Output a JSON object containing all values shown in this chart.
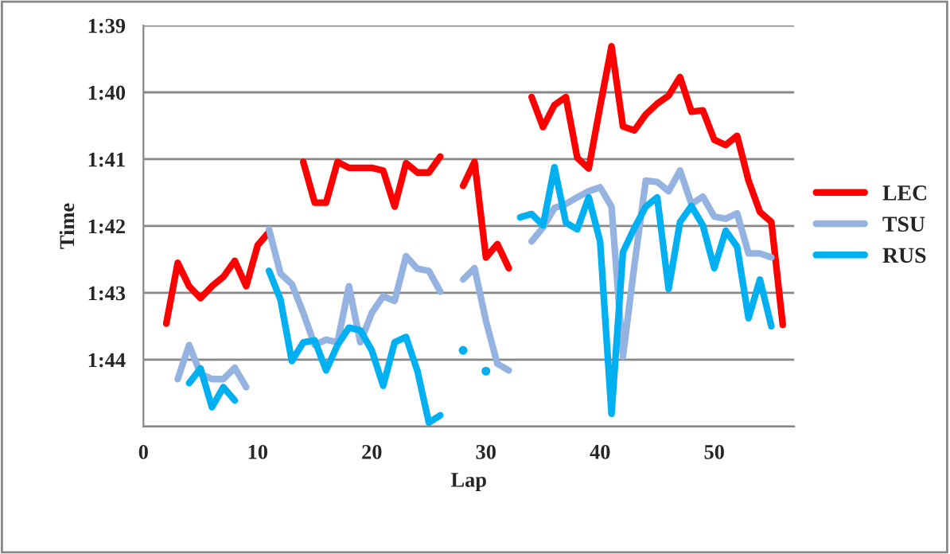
{
  "chart_data": {
    "type": "line",
    "xlabel": "Lap",
    "ylabel": "Time",
    "x": [
      2,
      3,
      4,
      5,
      6,
      7,
      8,
      9,
      10,
      11,
      12,
      13,
      14,
      15,
      16,
      17,
      18,
      19,
      20,
      21,
      22,
      23,
      24,
      25,
      26,
      27,
      28,
      29,
      30,
      31,
      32,
      33,
      34,
      35,
      36,
      37,
      38,
      39,
      40,
      41,
      42,
      43,
      44,
      45,
      46,
      47,
      48,
      49,
      50,
      51,
      52,
      53,
      54,
      55,
      56
    ],
    "series": [
      {
        "name": "LEC",
        "color": "#ff0000",
        "values": [
          103.46,
          102.55,
          102.9,
          103.08,
          102.9,
          102.76,
          102.52,
          102.9,
          102.29,
          102.09,
          null,
          null,
          101.04,
          101.65,
          101.65,
          101.04,
          101.13,
          101.13,
          101.13,
          101.17,
          101.71,
          101.06,
          101.2,
          101.2,
          100.96,
          null,
          101.4,
          101.04,
          102.47,
          102.27,
          102.63,
          null,
          100.07,
          100.52,
          100.19,
          100.07,
          100.98,
          101.14,
          100.21,
          99.31,
          100.51,
          100.57,
          100.33,
          100.17,
          100.05,
          99.77,
          100.29,
          100.27,
          100.71,
          100.79,
          100.65,
          101.32,
          101.79,
          101.94,
          103.48
        ]
      },
      {
        "name": "TSU",
        "color": "#95b3e0",
        "values": [
          null,
          104.29,
          103.78,
          104.21,
          104.29,
          104.29,
          104.12,
          104.41,
          null,
          102.05,
          102.71,
          102.87,
          103.3,
          103.78,
          103.7,
          103.74,
          102.9,
          103.74,
          103.3,
          103.05,
          103.12,
          102.45,
          102.64,
          102.67,
          102.98,
          null,
          102.8,
          102.63,
          103.42,
          104.06,
          104.16,
          null,
          102.23,
          102.02,
          101.73,
          101.67,
          101.57,
          101.48,
          101.42,
          101.71,
          103.95,
          102.59,
          101.32,
          101.34,
          101.48,
          101.17,
          101.67,
          101.56,
          101.86,
          101.89,
          101.81,
          102.41,
          102.41,
          102.47,
          null
        ]
      },
      {
        "name": "RUS",
        "color": "#00b0f0",
        "values": [
          null,
          null,
          104.35,
          104.13,
          104.71,
          104.41,
          104.61,
          null,
          null,
          102.67,
          103.1,
          104.02,
          103.74,
          103.71,
          104.16,
          103.78,
          103.52,
          103.56,
          103.86,
          104.39,
          103.74,
          103.66,
          104.17,
          104.94,
          104.83,
          null,
          103.86,
          null,
          104.17,
          null,
          null,
          101.87,
          101.82,
          101.99,
          101.12,
          101.95,
          102.05,
          101.57,
          102.23,
          104.81,
          102.39,
          102.03,
          101.71,
          101.57,
          102.94,
          101.94,
          101.7,
          101.99,
          102.63,
          102.07,
          102.31,
          103.38,
          102.8,
          103.5,
          null
        ]
      }
    ],
    "xlim": [
      0,
      57
    ],
    "xticks": [
      0,
      10,
      20,
      30,
      40,
      50
    ],
    "ylim": [
      105,
      99
    ],
    "yticks": [
      {
        "value": 99,
        "label": "1:39"
      },
      {
        "value": 100,
        "label": "1:40"
      },
      {
        "value": 101,
        "label": "1:41"
      },
      {
        "value": 102,
        "label": "1:42"
      },
      {
        "value": 103,
        "label": "1:43"
      },
      {
        "value": 104,
        "label": "1:44"
      },
      {
        "value": 105,
        "label": null
      }
    ],
    "grid": "y",
    "legend": "right",
    "marker": "none",
    "line_style": "solid"
  }
}
